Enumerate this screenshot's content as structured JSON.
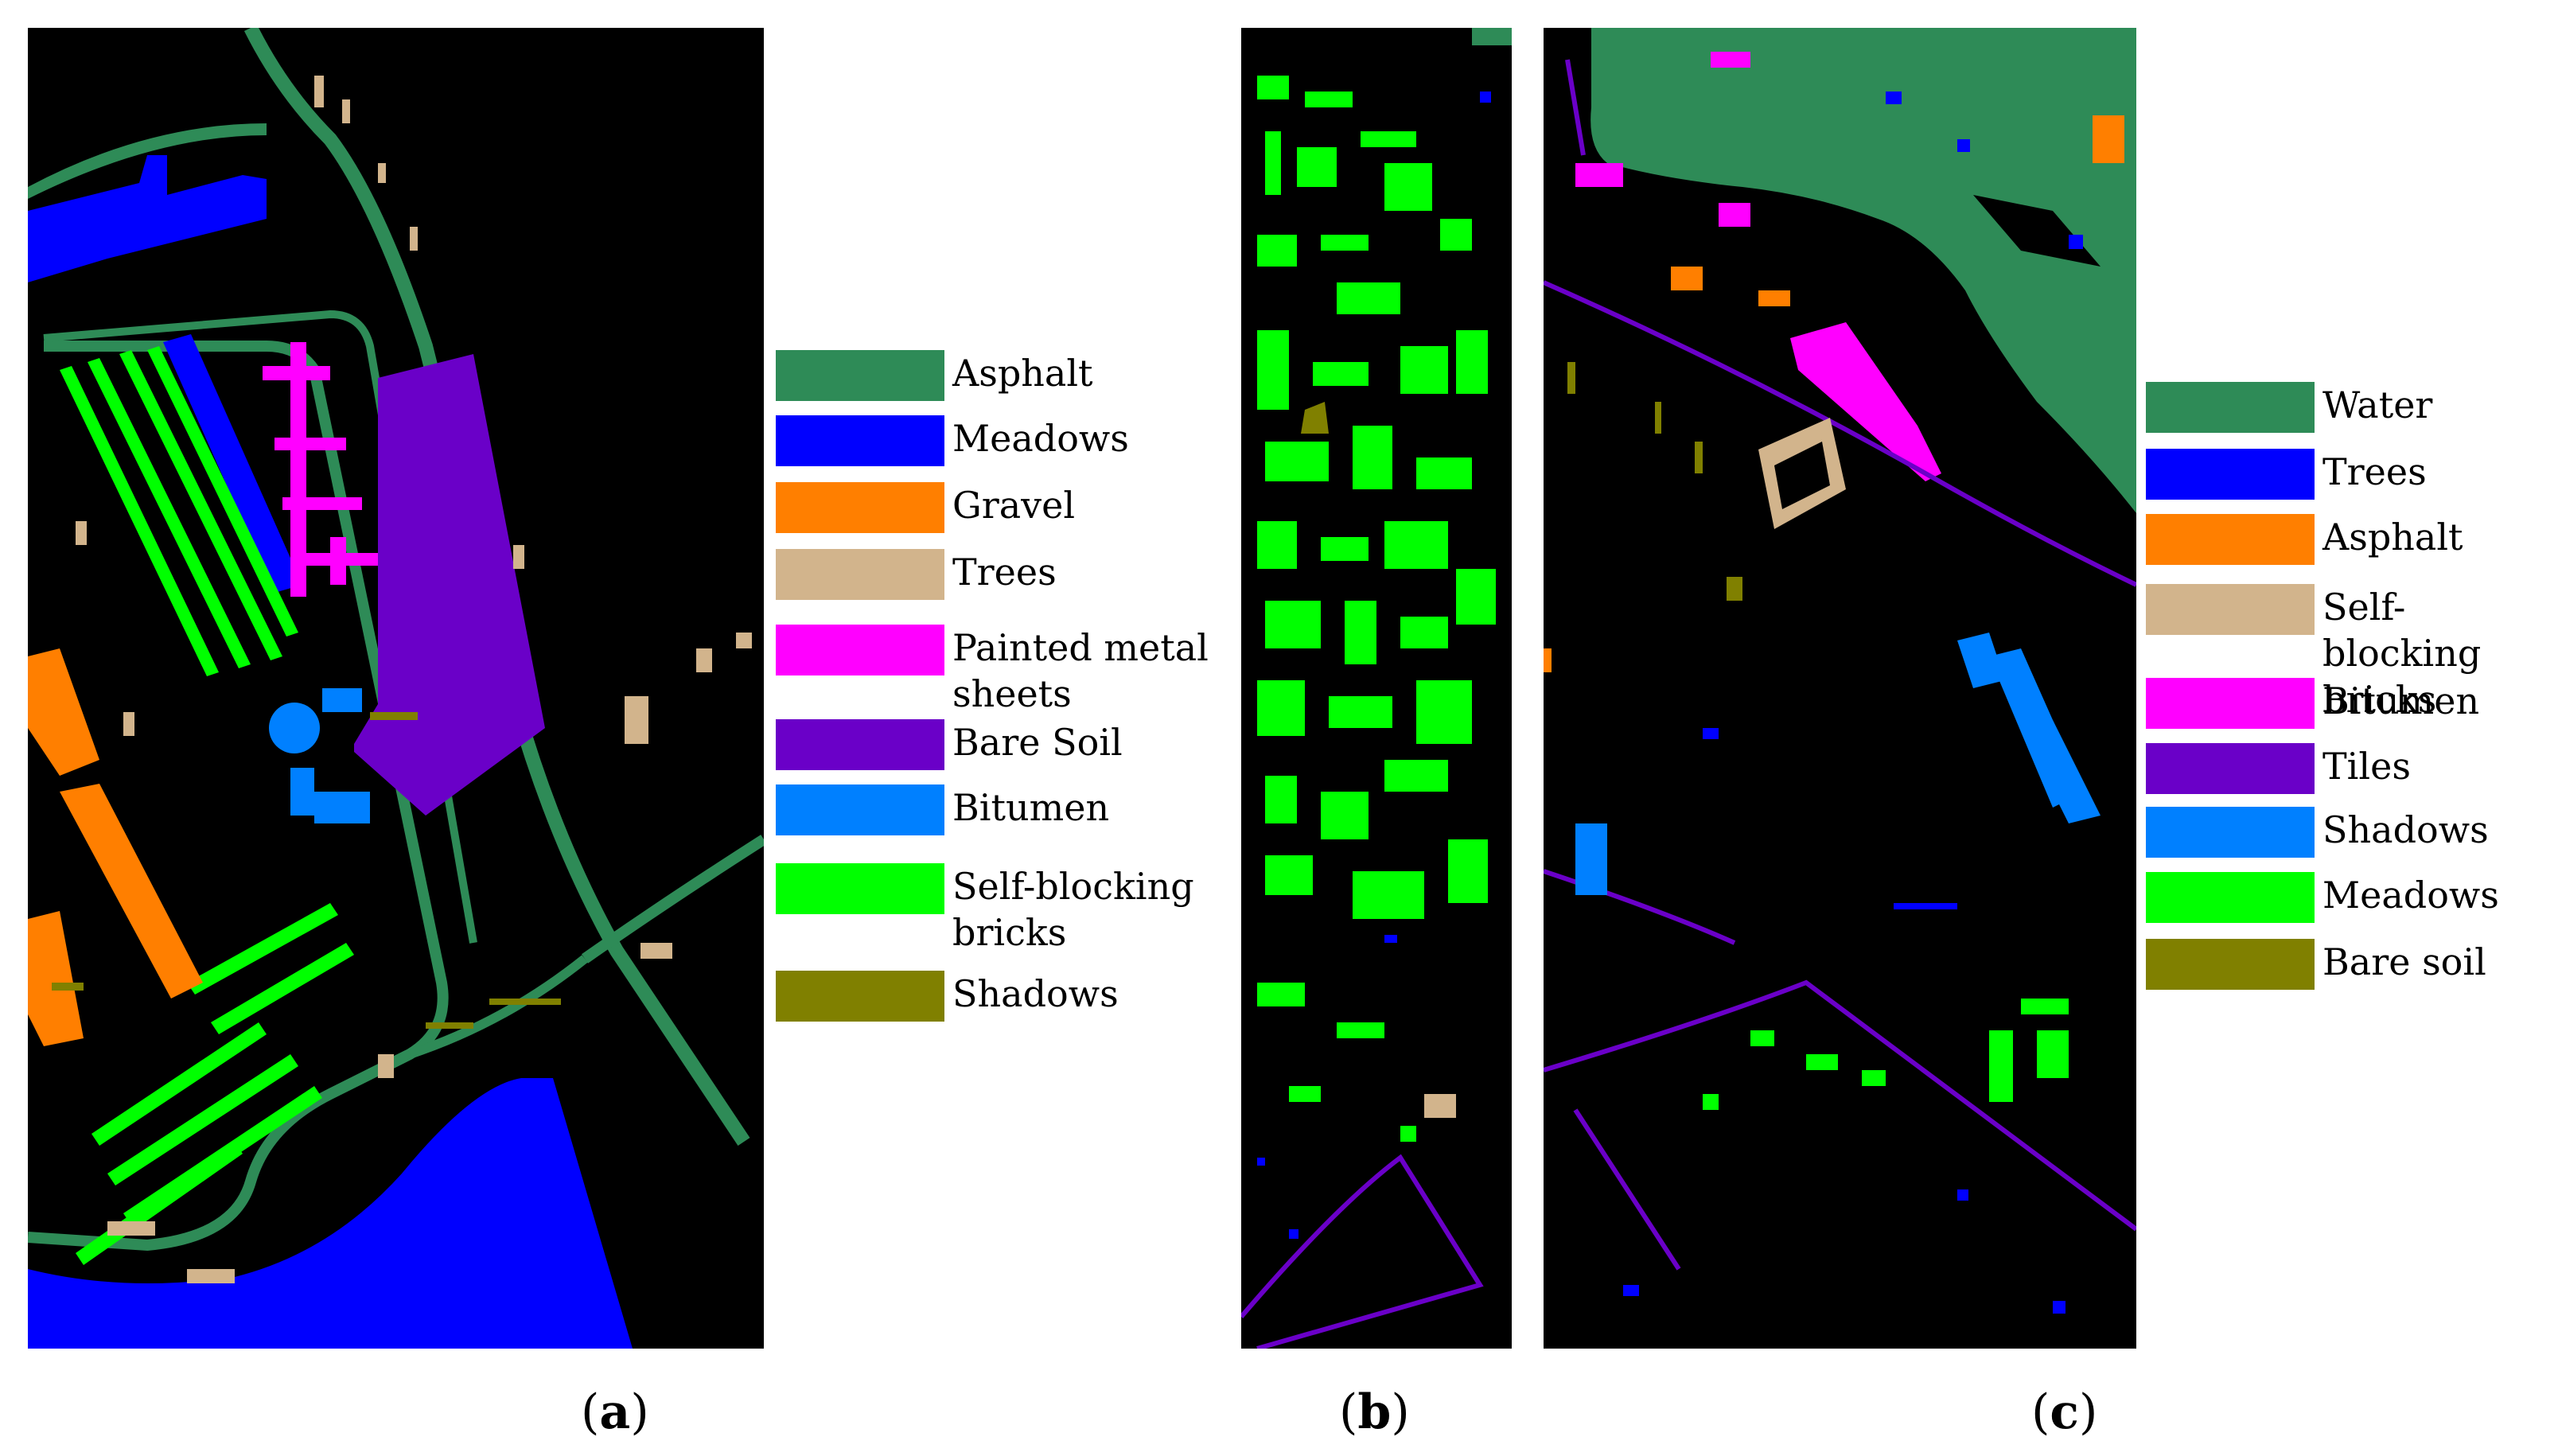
{
  "colors": {
    "background": "#000000",
    "dark_green": "#2e8b57",
    "blue": "#0000ff",
    "orange": "#ff7f00",
    "tan": "#d2b48c",
    "magenta": "#ff00ff",
    "purple": "#6a00c8",
    "sky_blue": "#0080ff",
    "bright_green": "#00ff00",
    "olive": "#808000"
  },
  "legend_a": [
    {
      "label": "Asphalt",
      "color": "#2e8b57"
    },
    {
      "label": "Meadows",
      "color": "#0000ff"
    },
    {
      "label": "Gravel",
      "color": "#ff7f00"
    },
    {
      "label": "Trees",
      "color": "#d2b48c"
    },
    {
      "label": "Painted metal sheets",
      "color": "#ff00ff"
    },
    {
      "label": "Bare Soil",
      "color": "#6a00c8"
    },
    {
      "label": "Bitumen",
      "color": "#0080ff"
    },
    {
      "label": "Self-blocking bricks",
      "color": "#00ff00"
    },
    {
      "label": "Shadows",
      "color": "#808000"
    }
  ],
  "legend_c": [
    {
      "label": "Water",
      "color": "#2e8b57"
    },
    {
      "label": "Trees",
      "color": "#0000ff"
    },
    {
      "label": "Asphalt",
      "color": "#ff7f00"
    },
    {
      "label": "Self-blocking bricks",
      "color": "#d2b48c"
    },
    {
      "label": "Bitumen",
      "color": "#ff00ff"
    },
    {
      "label": "Tiles",
      "color": "#6a00c8"
    },
    {
      "label": "Shadows",
      "color": "#0080ff"
    },
    {
      "label": "Meadows",
      "color": "#00ff00"
    },
    {
      "label": "Bare soil",
      "color": "#808000"
    }
  ],
  "panels": [
    {
      "open": "(",
      "letter": "a",
      "close": ")"
    },
    {
      "open": "(",
      "letter": "b",
      "close": ")"
    },
    {
      "open": "(",
      "letter": "c",
      "close": ")"
    }
  ]
}
